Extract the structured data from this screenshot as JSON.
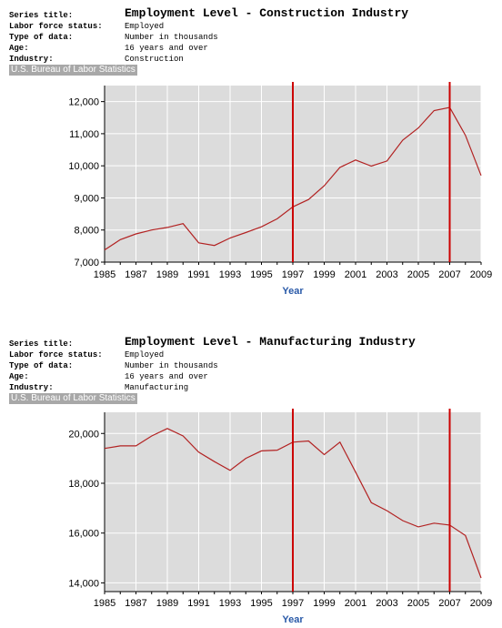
{
  "chart_data": [
    {
      "type": "line",
      "series_title_label": "Series title:",
      "title": "Employment Level - Construction Industry",
      "meta": [
        {
          "key": "Labor force status:",
          "value": "Employed"
        },
        {
          "key": "Type of data:",
          "value": "Number in thousands"
        },
        {
          "key": "Age:",
          "value": "16 years and over"
        },
        {
          "key": "Industry:",
          "value": "Construction"
        }
      ],
      "source": "U.S. Bureau of Labor Statistics",
      "xlabel": "Year",
      "ylabel": "",
      "xlim": [
        1985,
        2009
      ],
      "ylim": [
        7000,
        12500
      ],
      "yticks": [
        7000,
        8000,
        9000,
        10000,
        11000,
        12000
      ],
      "ytick_labels": [
        "7,000",
        "8,000",
        "9,000",
        "10,000",
        "11,000",
        "12,000"
      ],
      "xticks": [
        1985,
        1987,
        1989,
        1991,
        1993,
        1995,
        1997,
        1999,
        2001,
        2003,
        2005,
        2007,
        2009
      ],
      "vlines": [
        1997,
        2007
      ],
      "grid": true,
      "colors": {
        "line": "#b22222",
        "vline": "#cc0000",
        "plot_bg": "#dcdcdc",
        "grid": "#ffffff"
      },
      "series": [
        {
          "x": [
            1985,
            1986,
            1987,
            1988,
            1989,
            1990,
            1991,
            1992,
            1993,
            1994,
            1995,
            1996,
            1997,
            1998,
            1999,
            2000,
            2001,
            2002,
            2003,
            2004,
            2005,
            2006,
            2007,
            2008,
            2009
          ],
          "values": [
            7380,
            7700,
            7880,
            8000,
            8080,
            8200,
            7600,
            7520,
            7750,
            7920,
            8100,
            8350,
            8720,
            8950,
            9380,
            9950,
            10180,
            9990,
            10150,
            10800,
            11180,
            11720,
            11820,
            10950,
            9700
          ]
        }
      ]
    },
    {
      "type": "line",
      "series_title_label": "Series title:",
      "title": "Employment Level - Manufacturing Industry",
      "meta": [
        {
          "key": "Labor force status:",
          "value": "Employed"
        },
        {
          "key": "Type of data:",
          "value": "Number in thousands"
        },
        {
          "key": "Age:",
          "value": "16 years and over"
        },
        {
          "key": "Industry:",
          "value": "Manufacturing"
        }
      ],
      "source": "U.S. Bureau of Labor Statistics",
      "xlabel": "Year",
      "ylabel": "",
      "xlim": [
        1985,
        2009
      ],
      "ylim": [
        13650,
        20850
      ],
      "yticks": [
        14000,
        16000,
        18000,
        20000
      ],
      "ytick_labels": [
        "14,000",
        "16,000",
        "18,000",
        "20,000"
      ],
      "xticks": [
        1985,
        1987,
        1989,
        1991,
        1993,
        1995,
        1997,
        1999,
        2001,
        2003,
        2005,
        2007,
        2009
      ],
      "vlines": [
        1997,
        2007
      ],
      "grid": true,
      "colors": {
        "line": "#b22222",
        "vline": "#cc0000",
        "plot_bg": "#dcdcdc",
        "grid": "#ffffff"
      },
      "series": [
        {
          "x": [
            1985,
            1986,
            1987,
            1988,
            1989,
            1990,
            1991,
            1992,
            1993,
            1994,
            1995,
            1996,
            1997,
            1998,
            1999,
            2000,
            2001,
            2002,
            2003,
            2004,
            2005,
            2006,
            2007,
            2008,
            2009
          ],
          "values": [
            19400,
            19500,
            19500,
            19900,
            20200,
            19900,
            19250,
            18870,
            18520,
            19000,
            19300,
            19330,
            19650,
            19700,
            19150,
            19650,
            18450,
            17220,
            16900,
            16500,
            16250,
            16400,
            16320,
            15900,
            14200
          ]
        }
      ]
    }
  ]
}
